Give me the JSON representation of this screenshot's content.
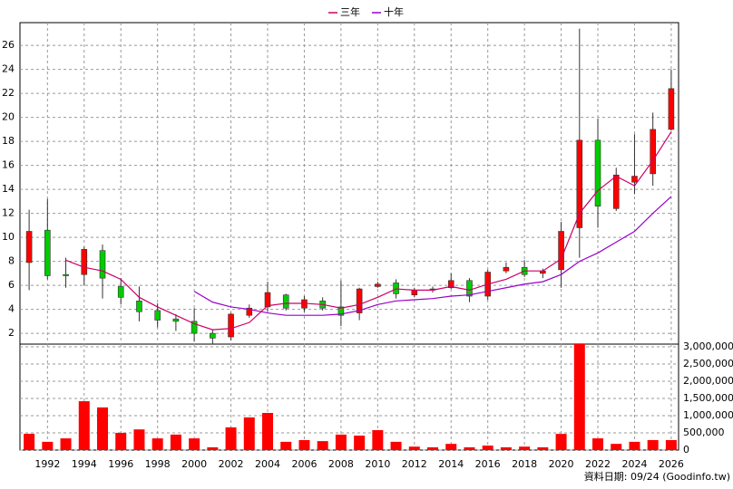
{
  "chart_data": [
    {
      "type": "candlestick",
      "x": [
        1991,
        1992,
        1993,
        1994,
        1995,
        1996,
        1997,
        1998,
        1999,
        2000,
        2001,
        2002,
        2003,
        2004,
        2005,
        2006,
        2007,
        2008,
        2009,
        2010,
        2011,
        2012,
        2013,
        2014,
        2015,
        2016,
        2017,
        2018,
        2019,
        2020,
        2021,
        2022,
        2023,
        2024,
        2025,
        2026
      ],
      "open": [
        7.9,
        10.6,
        6.9,
        6.9,
        8.9,
        5.9,
        4.7,
        3.9,
        3.2,
        3.0,
        2.0,
        1.7,
        3.5,
        4.2,
        5.2,
        4.1,
        4.7,
        4.2,
        3.7,
        5.9,
        6.2,
        5.2,
        5.6,
        5.8,
        6.4,
        5.1,
        7.2,
        7.5,
        7.0,
        7.3,
        10.8,
        18.1,
        12.4,
        14.6,
        15.3,
        19.0
      ],
      "high": [
        12.3,
        13.2,
        8.3,
        9.2,
        9.4,
        6.6,
        5.9,
        4.5,
        3.6,
        4.1,
        2.3,
        3.7,
        4.4,
        6.3,
        5.3,
        5.1,
        5.0,
        6.4,
        5.8,
        6.3,
        6.5,
        5.8,
        5.9,
        7.0,
        6.6,
        7.3,
        7.9,
        8.1,
        7.4,
        11.3,
        27.4,
        19.9,
        15.8,
        18.6,
        20.4,
        24.0
      ],
      "low": [
        5.6,
        6.5,
        5.8,
        6.0,
        4.9,
        4.4,
        3.0,
        2.5,
        2.2,
        1.3,
        1.1,
        1.4,
        3.3,
        3.8,
        3.9,
        3.8,
        3.9,
        2.6,
        3.1,
        5.8,
        4.9,
        5.0,
        5.4,
        5.7,
        4.6,
        4.8,
        7.0,
        6.7,
        6.6,
        5.8,
        8.3,
        10.8,
        12.2,
        13.6,
        14.3,
        18.9
      ],
      "close": [
        10.5,
        6.8,
        6.8,
        9.0,
        6.6,
        5.0,
        3.8,
        3.1,
        3.0,
        2.0,
        1.6,
        3.6,
        4.1,
        5.4,
        4.1,
        4.8,
        4.1,
        3.5,
        5.7,
        6.1,
        5.3,
        5.6,
        5.7,
        6.4,
        5.1,
        7.1,
        7.5,
        6.9,
        7.2,
        10.5,
        18.1,
        12.6,
        15.2,
        15.1,
        19.0,
        22.4
      ],
      "up_color": "#ff0000",
      "down_color": "#00cc00",
      "series": [
        {
          "name": "三年",
          "color": "#cc0066",
          "values": [
            null,
            null,
            8.1,
            7.5,
            7.2,
            6.5,
            5.0,
            4.2,
            3.5,
            2.8,
            2.3,
            2.4,
            2.9,
            4.3,
            4.5,
            4.5,
            4.4,
            4.1,
            4.4,
            5.0,
            5.7,
            5.6,
            5.6,
            5.9,
            5.6,
            6.1,
            6.5,
            7.2,
            7.2,
            8.2,
            12.0,
            13.9,
            15.1,
            14.3,
            16.4,
            18.8
          ]
        },
        {
          "name": "十年",
          "color": "#9900cc",
          "values": [
            null,
            null,
            null,
            null,
            null,
            null,
            null,
            null,
            null,
            5.5,
            4.6,
            4.2,
            4.0,
            3.7,
            3.5,
            3.5,
            3.5,
            3.6,
            3.9,
            4.4,
            4.7,
            4.8,
            4.9,
            5.1,
            5.2,
            5.5,
            5.8,
            6.1,
            6.3,
            6.9,
            8.0,
            8.7,
            9.6,
            10.5,
            12.0,
            13.4
          ]
        }
      ],
      "legend": "top",
      "xlim": [
        1990.5,
        2026.4
      ],
      "xticks": [
        1992,
        1994,
        1996,
        1998,
        2000,
        2002,
        2004,
        2006,
        2008,
        2010,
        2012,
        2014,
        2016,
        2018,
        2020,
        2022,
        2024,
        2026
      ],
      "ylim": [
        1.1,
        27.9
      ],
      "yticks": [
        2,
        4,
        6,
        8,
        10,
        12,
        14,
        16,
        18,
        20,
        22,
        24,
        26
      ],
      "grid": true
    },
    {
      "type": "bar",
      "x": [
        1991,
        1992,
        1993,
        1994,
        1995,
        1996,
        1997,
        1998,
        1999,
        2000,
        2001,
        2002,
        2003,
        2004,
        2005,
        2006,
        2007,
        2008,
        2009,
        2010,
        2011,
        2012,
        2013,
        2014,
        2015,
        2016,
        2017,
        2018,
        2019,
        2020,
        2021,
        2022,
        2023,
        2024,
        2025,
        2026
      ],
      "values": [
        474000,
        240000,
        340000,
        1420000,
        1240000,
        500000,
        600000,
        340000,
        450000,
        340000,
        80000,
        660000,
        950000,
        1080000,
        240000,
        290000,
        260000,
        450000,
        420000,
        580000,
        240000,
        100000,
        80000,
        180000,
        80000,
        130000,
        80000,
        100000,
        80000,
        470000,
        3100000,
        340000,
        180000,
        240000,
        290000,
        290000
      ],
      "color": "#ff0000",
      "xlim": [
        1990.5,
        2026.4
      ],
      "xticks": [
        1992,
        1994,
        1996,
        1998,
        2000,
        2002,
        2004,
        2006,
        2008,
        2010,
        2012,
        2014,
        2016,
        2018,
        2020,
        2022,
        2024,
        2026
      ],
      "ylim": [
        0,
        3080000
      ],
      "yticks": [
        0,
        {
          "value": 500000,
          "label": "500,000"
        },
        {
          "value": 1000000,
          "label": "1,000,000"
        },
        {
          "value": 1500000,
          "label": "1,500,000"
        },
        {
          "value": 2000000,
          "label": "2,000,000"
        },
        {
          "value": 2500000,
          "label": "2,500,000"
        },
        {
          "value": 3000000,
          "label": "3,000,000"
        }
      ],
      "grid": true,
      "footnote": "資料日期: 09/24 (Goodinfo.tw)"
    }
  ]
}
